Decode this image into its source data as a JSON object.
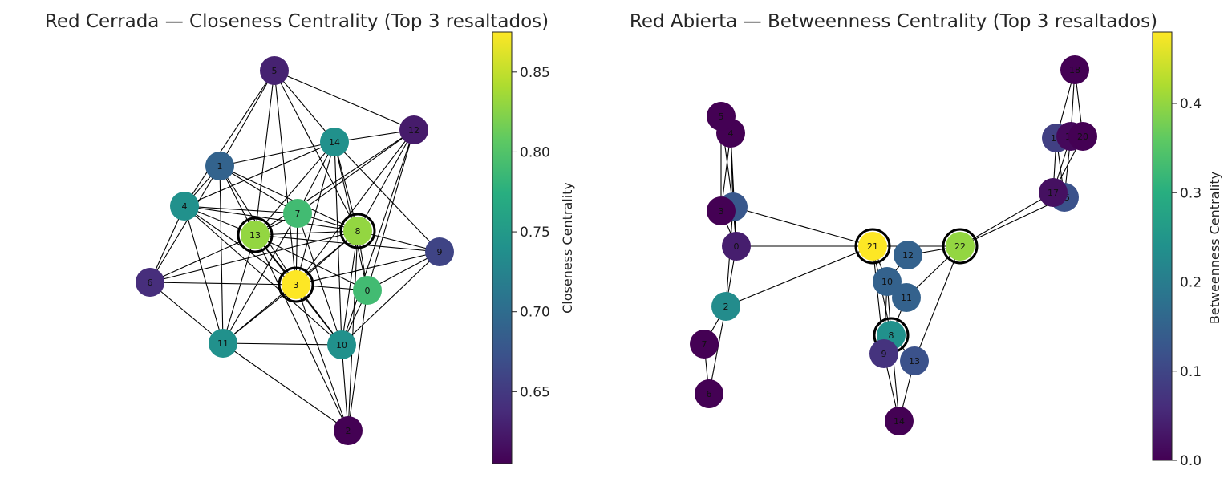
{
  "panels": [
    {
      "id": "closed",
      "title": "Red Cerrada — Closeness Centrality (Top 3 resaltados)",
      "colorbar": {
        "label": "Closeness Centrality",
        "min": 0.605,
        "max": 0.875,
        "ticks": [
          "0.65",
          "0.70",
          "0.75",
          "0.80",
          "0.85"
        ]
      },
      "highlighted": [
        "13",
        "8",
        "3"
      ],
      "nodes": [
        {
          "id": "0",
          "label": "0",
          "value": 0.79
        },
        {
          "id": "1",
          "label": "1",
          "value": 0.69
        },
        {
          "id": "2",
          "label": "2",
          "value": 0.605
        },
        {
          "id": "3",
          "label": "3",
          "value": 0.875
        },
        {
          "id": "4",
          "label": "4",
          "value": 0.74
        },
        {
          "id": "5",
          "label": "5",
          "value": 0.63
        },
        {
          "id": "6",
          "label": "6",
          "value": 0.64
        },
        {
          "id": "7",
          "label": "7",
          "value": 0.79
        },
        {
          "id": "8",
          "label": "8",
          "value": 0.83
        },
        {
          "id": "9",
          "label": "9",
          "value": 0.66
        },
        {
          "id": "10",
          "label": "10",
          "value": 0.74
        },
        {
          "id": "11",
          "label": "11",
          "value": 0.74
        },
        {
          "id": "12",
          "label": "12",
          "value": 0.625
        },
        {
          "id": "13",
          "label": "13",
          "value": 0.83
        },
        {
          "id": "14",
          "label": "14",
          "value": 0.74
        }
      ],
      "edges": [
        [
          "5",
          "1"
        ],
        [
          "5",
          "4"
        ],
        [
          "5",
          "13"
        ],
        [
          "5",
          "14"
        ],
        [
          "5",
          "3"
        ],
        [
          "5",
          "8"
        ],
        [
          "5",
          "12"
        ],
        [
          "1",
          "4"
        ],
        [
          "1",
          "14"
        ],
        [
          "1",
          "13"
        ],
        [
          "1",
          "7"
        ],
        [
          "1",
          "3"
        ],
        [
          "1",
          "11"
        ],
        [
          "1",
          "6"
        ],
        [
          "1",
          "8"
        ],
        [
          "4",
          "13"
        ],
        [
          "4",
          "7"
        ],
        [
          "4",
          "3"
        ],
        [
          "4",
          "6"
        ],
        [
          "4",
          "11"
        ],
        [
          "4",
          "8"
        ],
        [
          "4",
          "10"
        ],
        [
          "4",
          "14"
        ],
        [
          "14",
          "12"
        ],
        [
          "14",
          "13"
        ],
        [
          "14",
          "7"
        ],
        [
          "14",
          "8"
        ],
        [
          "14",
          "0"
        ],
        [
          "14",
          "3"
        ],
        [
          "14",
          "10"
        ],
        [
          "14",
          "9"
        ],
        [
          "12",
          "8"
        ],
        [
          "12",
          "0"
        ],
        [
          "12",
          "7"
        ],
        [
          "12",
          "3"
        ],
        [
          "12",
          "10"
        ],
        [
          "12",
          "13"
        ],
        [
          "7",
          "13"
        ],
        [
          "7",
          "3"
        ],
        [
          "7",
          "8"
        ],
        [
          "7",
          "11"
        ],
        [
          "7",
          "10"
        ],
        [
          "13",
          "8"
        ],
        [
          "13",
          "3"
        ],
        [
          "13",
          "6"
        ],
        [
          "13",
          "11"
        ],
        [
          "13",
          "10"
        ],
        [
          "13",
          "0"
        ],
        [
          "13",
          "2"
        ],
        [
          "8",
          "3"
        ],
        [
          "8",
          "0"
        ],
        [
          "8",
          "9"
        ],
        [
          "8",
          "10"
        ],
        [
          "8",
          "11"
        ],
        [
          "8",
          "6"
        ],
        [
          "3",
          "6"
        ],
        [
          "3",
          "0"
        ],
        [
          "3",
          "11"
        ],
        [
          "3",
          "10"
        ],
        [
          "3",
          "9"
        ],
        [
          "3",
          "2"
        ],
        [
          "9",
          "0"
        ],
        [
          "9",
          "10"
        ],
        [
          "9",
          "13"
        ],
        [
          "0",
          "10"
        ],
        [
          "0",
          "2"
        ],
        [
          "6",
          "11"
        ],
        [
          "11",
          "10"
        ],
        [
          "11",
          "2"
        ],
        [
          "10",
          "2"
        ],
        [
          "2",
          "8"
        ]
      ]
    },
    {
      "id": "open",
      "title": "Red Abierta — Betweenness Centrality (Top 3 resaltados)",
      "colorbar": {
        "label": "Betweenness Centrality",
        "min": 0.0,
        "max": 0.48,
        "ticks": [
          "0.0",
          "0.1",
          "0.2",
          "0.3",
          "0.4"
        ]
      },
      "highlighted": [
        "21",
        "22",
        "8"
      ],
      "nodes": [
        {
          "id": "0",
          "label": "0",
          "value": 0.04
        },
        {
          "id": "1",
          "label": "1",
          "value": 0.13
        },
        {
          "id": "2",
          "label": "2",
          "value": 0.23
        },
        {
          "id": "3",
          "label": "3",
          "value": 0.0
        },
        {
          "id": "4",
          "label": "4",
          "value": 0.0
        },
        {
          "id": "5",
          "label": "5",
          "value": 0.0
        },
        {
          "id": "6",
          "label": "6",
          "value": 0.0
        },
        {
          "id": "7",
          "label": "7",
          "value": 0.0
        },
        {
          "id": "8",
          "label": "8",
          "value": 0.24
        },
        {
          "id": "9",
          "label": "9",
          "value": 0.07
        },
        {
          "id": "10",
          "label": "10",
          "value": 0.15
        },
        {
          "id": "11",
          "label": "11",
          "value": 0.15
        },
        {
          "id": "12",
          "label": "12",
          "value": 0.15
        },
        {
          "id": "13",
          "label": "13",
          "value": 0.12
        },
        {
          "id": "14",
          "label": "14",
          "value": 0.0
        },
        {
          "id": "15",
          "label": "15",
          "value": 0.12
        },
        {
          "id": "16",
          "label": "16",
          "value": 0.09
        },
        {
          "id": "17",
          "label": "17",
          "value": 0.02
        },
        {
          "id": "18",
          "label": "18",
          "value": 0.0
        },
        {
          "id": "19",
          "label": "19",
          "value": 0.01
        },
        {
          "id": "20",
          "label": "20",
          "value": 0.0
        },
        {
          "id": "21",
          "label": "21",
          "value": 0.48
        },
        {
          "id": "22",
          "label": "22",
          "value": 0.4
        }
      ],
      "edges": [
        [
          "5",
          "4"
        ],
        [
          "5",
          "3"
        ],
        [
          "5",
          "1"
        ],
        [
          "4",
          "3"
        ],
        [
          "4",
          "1"
        ],
        [
          "4",
          "0"
        ],
        [
          "3",
          "1"
        ],
        [
          "3",
          "0"
        ],
        [
          "1",
          "0"
        ],
        [
          "1",
          "21"
        ],
        [
          "1",
          "2"
        ],
        [
          "0",
          "21"
        ],
        [
          "0",
          "2"
        ],
        [
          "2",
          "21"
        ],
        [
          "2",
          "7"
        ],
        [
          "7",
          "6"
        ],
        [
          "2",
          "6"
        ],
        [
          "21",
          "10"
        ],
        [
          "21",
          "8"
        ],
        [
          "21",
          "9"
        ],
        [
          "21",
          "22"
        ],
        [
          "10",
          "8"
        ],
        [
          "10",
          "9"
        ],
        [
          "10",
          "11"
        ],
        [
          "11",
          "8"
        ],
        [
          "11",
          "22"
        ],
        [
          "12",
          "22"
        ],
        [
          "12",
          "10"
        ],
        [
          "8",
          "9"
        ],
        [
          "8",
          "13"
        ],
        [
          "8",
          "14"
        ],
        [
          "9",
          "14"
        ],
        [
          "13",
          "14"
        ],
        [
          "13",
          "22"
        ],
        [
          "22",
          "17"
        ],
        [
          "22",
          "15"
        ],
        [
          "16",
          "18"
        ],
        [
          "16",
          "19"
        ],
        [
          "16",
          "20"
        ],
        [
          "16",
          "17"
        ],
        [
          "16",
          "15"
        ],
        [
          "19",
          "18"
        ],
        [
          "20",
          "18"
        ],
        [
          "19",
          "15"
        ],
        [
          "20",
          "17"
        ],
        [
          "17",
          "15"
        ],
        [
          "19",
          "17"
        ]
      ]
    }
  ]
}
